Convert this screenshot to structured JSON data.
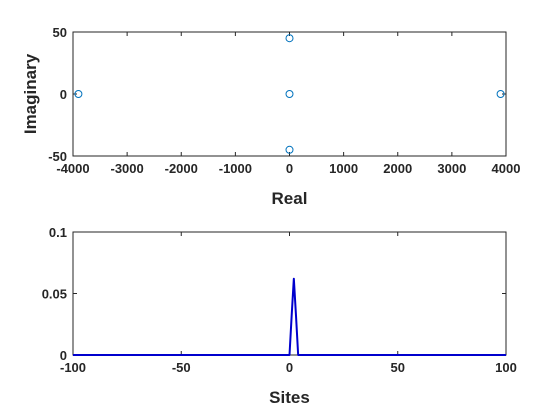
{
  "chart_data": [
    {
      "type": "scatter",
      "xlabel": "Real",
      "ylabel": "Imaginary",
      "xlim": [
        -4000,
        4000
      ],
      "ylim": [
        -50,
        50
      ],
      "xticks": [
        -4000,
        -3000,
        -2000,
        -1000,
        0,
        1000,
        2000,
        3000,
        4000
      ],
      "yticks": [
        -50,
        0,
        50
      ],
      "grid": false,
      "marker": "circle-open",
      "color": "#0072bd",
      "points": [
        {
          "x": -3900,
          "y": 0
        },
        {
          "x": 0,
          "y": 45
        },
        {
          "x": 0,
          "y": 0
        },
        {
          "x": 0,
          "y": -45
        },
        {
          "x": 3900,
          "y": 0
        }
      ]
    },
    {
      "type": "line",
      "xlabel": "Sites",
      "ylabel": "",
      "xlim": [
        -100,
        100
      ],
      "ylim": [
        0,
        0.1
      ],
      "xticks": [
        -100,
        -50,
        0,
        50,
        100
      ],
      "yticks": [
        0,
        0.05,
        0.1
      ],
      "grid": false,
      "color": "#0000cd",
      "points": [
        {
          "x": -100,
          "y": 0
        },
        {
          "x": 0,
          "y": 0
        },
        {
          "x": 1,
          "y": 0.032
        },
        {
          "x": 2,
          "y": 0.062
        },
        {
          "x": 3,
          "y": 0.032
        },
        {
          "x": 4,
          "y": 0
        },
        {
          "x": 100,
          "y": 0
        }
      ]
    }
  ]
}
